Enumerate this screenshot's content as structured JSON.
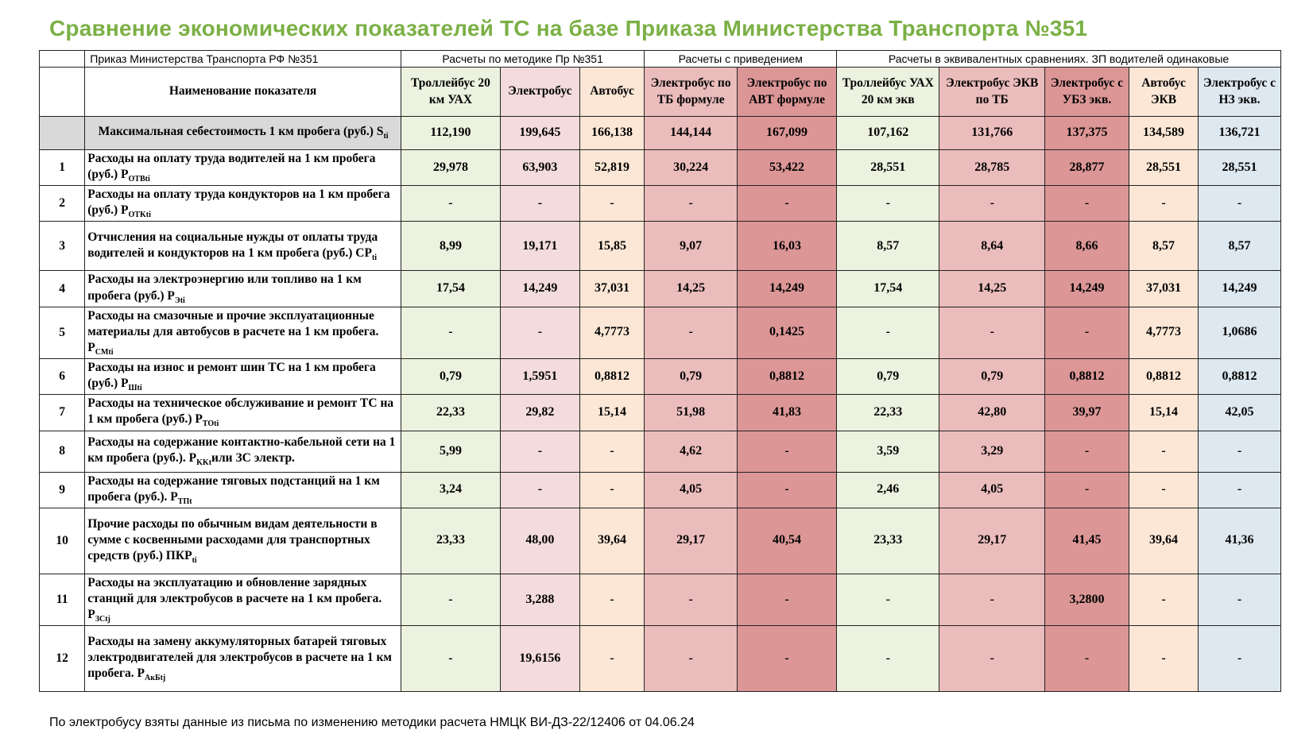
{
  "title": "Сравнение экономических показателей ТС на базе Приказа Министерства Транспорта №351",
  "groups": {
    "order": "Приказ Министерства Транспорта РФ №351",
    "method": "Расчеты по методике Пр №351",
    "reduced": "Расчеты с приведением",
    "equiv": "Расчеты в эквивалентных сравнениях. ЗП водителей одинаковые"
  },
  "header": {
    "name": "Наименование показателя",
    "columns": [
      "Троллейбус 20 км УАХ",
      "Электробус",
      "Автобус",
      "Электробус по ТБ формуле",
      "Электробус по АВТ формуле",
      "Троллейбус УАХ 20 км экв",
      "Электробус ЭКВ по ТБ",
      "Электробус с УБЗ экв.",
      "Автобус ЭКВ",
      "Электробус с НЗ экв."
    ]
  },
  "rows": [
    {
      "idx": "",
      "name": "Максимальная себестоимость 1 км пробега (руб.) S",
      "sub": "ti",
      "values": [
        "112,190",
        "199,645",
        "166,138",
        "144,144",
        "167,099",
        "107,162",
        "131,766",
        "137,375",
        "134,589",
        "136,721"
      ]
    },
    {
      "idx": "1",
      "name": "Расходы на оплату труда водителей на 1 км пробега (руб.) P",
      "sub": "OTBti",
      "values": [
        "29,978",
        "63,903",
        "52,819",
        "30,224",
        "53,422",
        "28,551",
        "28,785",
        "28,877",
        "28,551",
        "28,551"
      ]
    },
    {
      "idx": "2",
      "name": "Расходы на оплату труда кондукторов на 1 км пробега (руб.) P",
      "sub": "OTKti",
      "values": [
        "-",
        "-",
        "-",
        "-",
        "-",
        "-",
        "-",
        "-",
        "-",
        "-"
      ]
    },
    {
      "idx": "3",
      "name": "Отчисления на социальные нужды от оплаты труда водителей и кондукторов на 1 км пробега (руб.) CP",
      "sub": "ti",
      "values": [
        "8,99",
        "19,171",
        "15,85",
        "9,07",
        "16,03",
        "8,57",
        "8,64",
        "8,66",
        "8,57",
        "8,57"
      ]
    },
    {
      "idx": "4",
      "name": "Расходы на электроэнергию или топливо на 1 км пробега (руб.) P",
      "sub": "Эti",
      "values": [
        "17,54",
        "14,249",
        "37,031",
        "14,25",
        "14,249",
        "17,54",
        "14,25",
        "14,249",
        "37,031",
        "14,249"
      ]
    },
    {
      "idx": "5",
      "name": "Расходы на смазочные и прочие эксплуатационные материалы для автобусов в расчете на 1 км пробега. P",
      "sub": "CMti",
      "values": [
        "-",
        "-",
        "4,7773",
        "-",
        "0,1425",
        "-",
        "-",
        "-",
        "4,7773",
        "1,0686"
      ]
    },
    {
      "idx": "6",
      "name": "Расходы на износ и ремонт шин ТС на 1 км пробега (руб.) P",
      "sub": "Шti",
      "values": [
        "0,79",
        "1,5951",
        "0,8812",
        "0,79",
        "0,8812",
        "0,79",
        "0,79",
        "0,8812",
        "0,8812",
        "0,8812"
      ]
    },
    {
      "idx": "7",
      "name": "Расходы на техническое обслуживание и ремонт ТС на 1 км пробега (руб.) P",
      "sub": "TOti",
      "values": [
        "22,33",
        "29,82",
        "15,14",
        "51,98",
        "41,83",
        "22,33",
        "42,80",
        "39,97",
        "15,14",
        "42,05"
      ]
    },
    {
      "idx": "8",
      "name": "Расходы на содержание контактно-кабельной сети на 1 км пробега (руб.). P",
      "sub": "KKt",
      "extra": "или ЗС электр.",
      "values": [
        "5,99",
        "-",
        "-",
        "4,62",
        "-",
        "3,59",
        "3,29",
        "-",
        "-",
        "-"
      ]
    },
    {
      "idx": "9",
      "name": "Расходы на содержание тяговых подстанций на 1 км пробега (руб.). P",
      "sub": "TПt",
      "values": [
        "3,24",
        "-",
        "-",
        "4,05",
        "-",
        "2,46",
        "4,05",
        "-",
        "-",
        "-"
      ]
    },
    {
      "idx": "10",
      "name": "Прочие расходы по обычным видам деятельности в сумме с косвенными расходами для транспортных средств (руб.) ПКР",
      "sub": "ti",
      "values": [
        "23,33",
        "48,00",
        "39,64",
        "29,17",
        "40,54",
        "23,33",
        "29,17",
        "41,45",
        "39,64",
        "41,36"
      ]
    },
    {
      "idx": "11",
      "name": "Расходы на эксплуатацию и обновление зарядных станций для электробусов в расчете на 1 км пробега. P",
      "sub": "ЗCtj",
      "values": [
        "-",
        "3,288",
        "-",
        "-",
        "-",
        "-",
        "-",
        "3,2800",
        "-",
        "-"
      ]
    },
    {
      "idx": "12",
      "name": "Расходы на замену аккумуляторных батарей тяговых электродвигателей для электробусов в расчете на 1 км пробега. P",
      "sub": "АкБtj",
      "values": [
        "-",
        "19,6156",
        "-",
        "-",
        "-",
        "-",
        "-",
        "-",
        "-",
        "-"
      ]
    }
  ],
  "footer": "По электробусу взяты данные из письма по изменению методики расчета НМЦК ВИ-ДЗ-22/12406 от 04.06.24",
  "colors": {
    "title": "#7bb045",
    "trolleybus": "#ecf2df",
    "ebus": "#f4dcdc",
    "bus": "#fce7d6",
    "ebus_tb": "#ebbcbc",
    "ebus_avt": "#dc9696",
    "ebus_nz": "#dde8f0",
    "max_row": "#d9d9d9"
  }
}
